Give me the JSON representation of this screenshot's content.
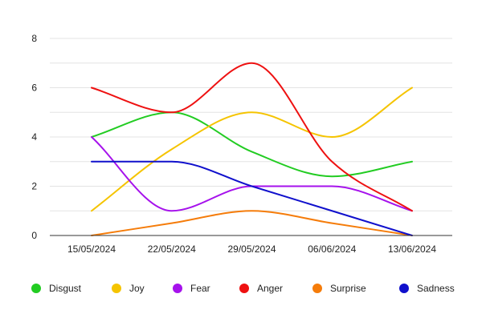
{
  "chart_data": {
    "type": "line",
    "categories": [
      "15/05/2024",
      "22/05/2024",
      "29/05/2024",
      "06/06/2024",
      "13/06/2024"
    ],
    "ylim": [
      0,
      8
    ],
    "yticks": [
      0,
      2,
      4,
      6,
      8
    ],
    "grid": true,
    "legend_position": "bottom",
    "series": [
      {
        "name": "Disgust",
        "color": "#22cc22",
        "values": [
          4,
          5,
          3.4,
          2.4,
          3
        ]
      },
      {
        "name": "Joy",
        "color": "#f5c400",
        "values": [
          1,
          3.5,
          5,
          4,
          6
        ]
      },
      {
        "name": "Fear",
        "color": "#a612ec",
        "values": [
          4,
          1,
          2,
          2,
          1
        ]
      },
      {
        "name": "Anger",
        "color": "#ee1111",
        "values": [
          6,
          5,
          7,
          3,
          1
        ]
      },
      {
        "name": "Surprise",
        "color": "#f57c0a",
        "values": [
          0,
          0.5,
          1,
          0.5,
          0
        ]
      },
      {
        "name": "Sadness",
        "color": "#1010cc",
        "values": [
          3,
          3,
          2,
          1,
          0
        ]
      }
    ]
  }
}
